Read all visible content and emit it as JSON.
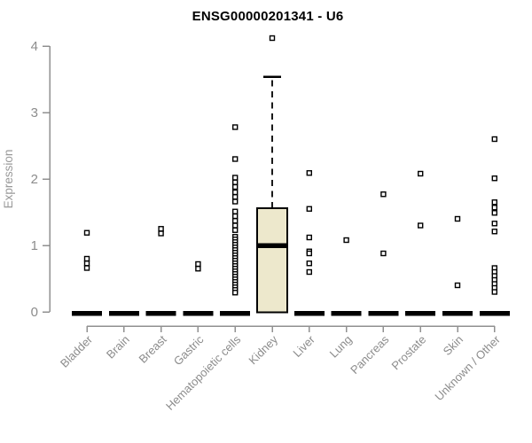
{
  "page": {
    "title": "ENSG00000201341 - U6"
  },
  "chart_data": {
    "type": "boxplot",
    "title": "ENSG00000201341 - U6",
    "xlabel": "",
    "ylabel": "Expression",
    "ylim": [
      0,
      4
    ],
    "yticks": [
      0,
      1,
      2,
      3,
      4
    ],
    "grid": false,
    "legend": null,
    "categories": [
      "Bladder",
      "Brain",
      "Breast",
      "Gastric",
      "Hematopoietic cells",
      "Kidney",
      "Liver",
      "Lung",
      "Pancreas",
      "Prostate",
      "Skin",
      "Unknown / Other"
    ],
    "series": [
      {
        "category": "Bladder",
        "box": {
          "whisker_low": 0,
          "q1": 0,
          "median": 0,
          "q3": 0,
          "whisker_high": 0
        },
        "outliers": [
          1.19,
          0.8,
          0.73,
          0.66
        ]
      },
      {
        "category": "Brain",
        "box": {
          "whisker_low": 0,
          "q1": 0,
          "median": 0,
          "q3": 0,
          "whisker_high": 0
        },
        "outliers": []
      },
      {
        "category": "Breast",
        "box": {
          "whisker_low": 0,
          "q1": 0,
          "median": 0,
          "q3": 0,
          "whisker_high": 0
        },
        "outliers": [
          1.25,
          1.18
        ]
      },
      {
        "category": "Gastric",
        "box": {
          "whisker_low": 0,
          "q1": 0,
          "median": 0,
          "q3": 0,
          "whisker_high": 0
        },
        "outliers": [
          0.72,
          0.65
        ]
      },
      {
        "category": "Hematopoietic cells",
        "box": {
          "whisker_low": 0,
          "q1": 0,
          "median": 0,
          "q3": 0,
          "whisker_high": 0
        },
        "outliers": [
          2.78,
          2.3,
          2.02,
          1.95,
          1.88,
          1.8,
          1.73,
          1.66,
          1.51,
          1.44,
          1.37,
          1.3,
          1.23,
          1.13,
          1.09,
          1.05,
          1.01,
          0.97,
          0.93,
          0.89,
          0.85,
          0.81,
          0.77,
          0.73,
          0.69,
          0.65,
          0.61,
          0.57,
          0.53,
          0.49,
          0.45,
          0.41,
          0.37,
          0.33,
          0.29
        ]
      },
      {
        "category": "Kidney",
        "box": {
          "whisker_low": 0,
          "q1": 0,
          "median": 1.0,
          "q3": 1.56,
          "whisker_high": 3.54
        },
        "outliers": [
          4.12
        ]
      },
      {
        "category": "Liver",
        "box": {
          "whisker_low": 0,
          "q1": 0,
          "median": 0,
          "q3": 0,
          "whisker_high": 0
        },
        "outliers": [
          2.09,
          1.55,
          1.12,
          0.91,
          0.88,
          0.73,
          0.6
        ]
      },
      {
        "category": "Lung",
        "box": {
          "whisker_low": 0,
          "q1": 0,
          "median": 0,
          "q3": 0,
          "whisker_high": 0
        },
        "outliers": [
          1.08
        ]
      },
      {
        "category": "Pancreas",
        "box": {
          "whisker_low": 0,
          "q1": 0,
          "median": 0,
          "q3": 0,
          "whisker_high": 0
        },
        "outliers": [
          1.77,
          0.88
        ]
      },
      {
        "category": "Prostate",
        "box": {
          "whisker_low": 0,
          "q1": 0,
          "median": 0,
          "q3": 0,
          "whisker_high": 0
        },
        "outliers": [
          2.08,
          1.3
        ]
      },
      {
        "category": "Skin",
        "box": {
          "whisker_low": 0,
          "q1": 0,
          "median": 0,
          "q3": 0,
          "whisker_high": 0
        },
        "outliers": [
          1.4,
          0.4
        ]
      },
      {
        "category": "Unknown / Other",
        "box": {
          "whisker_low": 0,
          "q1": 0,
          "median": 0,
          "q3": 0,
          "whisker_high": 0
        },
        "outliers": [
          2.6,
          2.01,
          1.65,
          1.57,
          1.49,
          1.33,
          1.21,
          0.66,
          0.6,
          0.54,
          0.48,
          0.42,
          0.36,
          0.3
        ]
      }
    ],
    "colors": {
      "background": "#ffffff",
      "box_fill": "#EDE8CC",
      "box_stroke": "#000000",
      "median": "#000000",
      "point_stroke": "#000000",
      "point_fill": "#ffffff",
      "axis_line": "#909090",
      "tick_label": "#8C8C8C",
      "axis_label": "#999999",
      "title": "#000000"
    }
  }
}
